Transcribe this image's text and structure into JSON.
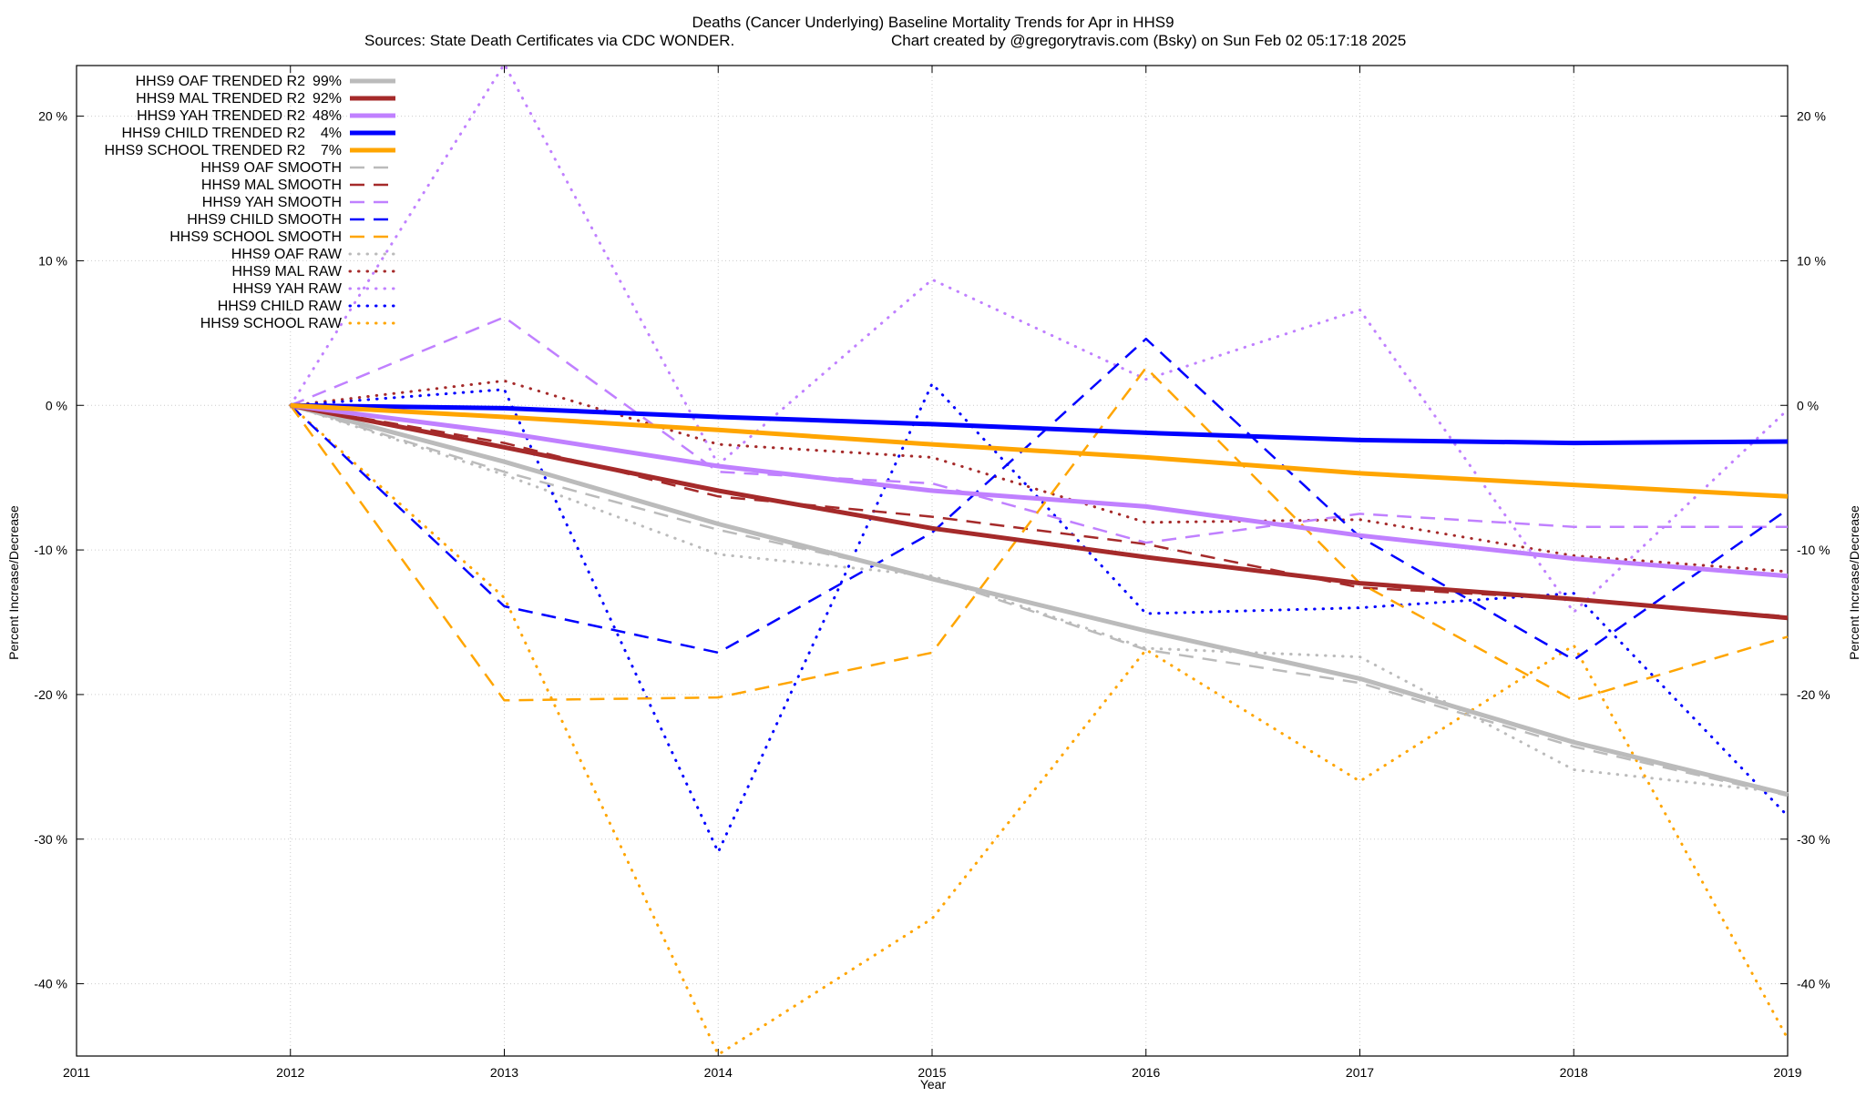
{
  "chart_data": {
    "type": "line",
    "title": "Deaths (Cancer Underlying)  Baseline Mortality Trends for Apr in HHS9",
    "subtitle_left": "Sources: State Death Certificates via CDC WONDER.",
    "subtitle_right": "Chart created by @gregorytravis.com (Bsky) on Sun Feb 02 05:17:18 2025",
    "xlabel": "Year",
    "ylabel": "Percent Increase/Decrease",
    "xlim": [
      2011,
      2019
    ],
    "ylim": [
      -45,
      23.5
    ],
    "x_ticks": [
      2011,
      2012,
      2013,
      2014,
      2015,
      2016,
      2017,
      2018,
      2019
    ],
    "y_ticks": [
      {
        "value": 20,
        "label": "20 %"
      },
      {
        "value": 10,
        "label": "10 %"
      },
      {
        "value": 0,
        "label": "0 %"
      },
      {
        "value": -10,
        "label": "-10 %"
      },
      {
        "value": -20,
        "label": "-20 %"
      },
      {
        "value": -30,
        "label": "-30 %"
      },
      {
        "value": -40,
        "label": "-40 %"
      }
    ],
    "grid": true,
    "legend_position": "top-left",
    "x": [
      2012,
      2013,
      2014,
      2015,
      2016,
      2017,
      2018,
      2019
    ],
    "series": [
      {
        "name": "HHS9 OAF TRENDED R2",
        "r2": "99%",
        "style": "solid",
        "color": "#bbbbbb",
        "values": [
          0,
          -3.9,
          -8.2,
          -12.0,
          -15.6,
          -18.9,
          -23.3,
          -26.9
        ]
      },
      {
        "name": "HHS9 MAL TRENDED R2",
        "r2": "92%",
        "style": "solid",
        "color": "#a52a2a",
        "values": [
          0,
          -2.9,
          -5.9,
          -8.5,
          -10.5,
          -12.3,
          -13.4,
          -14.7
        ]
      },
      {
        "name": "HHS9 YAH TRENDED R2",
        "r2": "48%",
        "style": "solid",
        "color": "#c080ff",
        "values": [
          0,
          -1.9,
          -4.2,
          -5.9,
          -7.0,
          -9.0,
          -10.6,
          -11.8
        ]
      },
      {
        "name": "HHS9 CHILD TRENDED R2",
        "r2": "4%",
        "style": "solid",
        "color": "#0000ff",
        "values": [
          0,
          -0.2,
          -0.8,
          -1.3,
          -1.9,
          -2.4,
          -2.6,
          -2.5
        ]
      },
      {
        "name": "HHS9 SCHOOL TRENDED R2",
        "r2": "7%",
        "style": "solid",
        "color": "#ffa500",
        "values": [
          0,
          -0.8,
          -1.7,
          -2.7,
          -3.6,
          -4.7,
          -5.5,
          -6.3
        ]
      },
      {
        "name": "HHS9 OAF SMOOTH",
        "style": "dash",
        "color": "#bbbbbb",
        "values": [
          0,
          -4.6,
          -8.6,
          -11.9,
          -16.9,
          -19.2,
          -23.6,
          -27.0
        ]
      },
      {
        "name": "HHS9 MAL SMOOTH",
        "style": "dash",
        "color": "#a52a2a",
        "values": [
          0,
          -2.6,
          -6.3,
          -7.7,
          -9.6,
          -12.6,
          -13.4,
          -14.6
        ]
      },
      {
        "name": "HHS9 YAH SMOOTH",
        "style": "dash",
        "color": "#c080ff",
        "values": [
          0,
          6.1,
          -4.6,
          -5.4,
          -9.5,
          -7.5,
          -8.4,
          -8.4
        ]
      },
      {
        "name": "HHS9 CHILD SMOOTH",
        "style": "dash",
        "color": "#0000ff",
        "values": [
          0,
          -13.9,
          -17.1,
          -8.8,
          4.6,
          -9.1,
          -17.6,
          -7.2
        ]
      },
      {
        "name": "HHS9 SCHOOL SMOOTH",
        "style": "dash",
        "color": "#ffa500",
        "values": [
          0,
          -20.4,
          -20.2,
          -17.1,
          2.6,
          -12.3,
          -20.4,
          -16.0
        ]
      },
      {
        "name": "HHS9 OAF RAW",
        "style": "dot",
        "color": "#bbbbbb",
        "values": [
          0,
          -4.8,
          -10.3,
          -11.8,
          -16.8,
          -17.4,
          -25.2,
          -26.8
        ]
      },
      {
        "name": "HHS9 MAL RAW",
        "style": "dot",
        "color": "#a52a2a",
        "values": [
          0,
          1.7,
          -2.7,
          -3.6,
          -8.1,
          -7.9,
          -10.4,
          -11.5
        ]
      },
      {
        "name": "HHS9 YAH RAW",
        "style": "dot",
        "color": "#c080ff",
        "values": [
          0,
          23.6,
          -4.1,
          8.7,
          1.8,
          6.6,
          -14.3,
          -0.3
        ]
      },
      {
        "name": "HHS9 CHILD RAW",
        "style": "dot",
        "color": "#0000ff",
        "values": [
          0,
          1.1,
          -30.9,
          1.5,
          -14.4,
          -14.0,
          -13.0,
          -28.4
        ]
      },
      {
        "name": "HHS9 SCHOOL RAW",
        "style": "dot",
        "color": "#ffa500",
        "values": [
          0,
          -13.3,
          -44.9,
          -35.5,
          -16.9,
          -26.0,
          -16.6,
          -43.8
        ]
      }
    ]
  }
}
